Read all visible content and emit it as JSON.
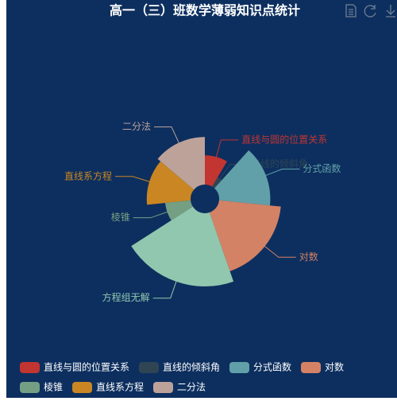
{
  "chart_data": {
    "type": "pie",
    "rose_type": "radius",
    "title": "高一（三）班数学薄弱知识点统计",
    "categories": [
      "直线与圆的位置关系",
      "直线的倾斜角",
      "分式函数",
      "对数",
      "方程组无解",
      "棱锥",
      "直线系方程",
      "二分法"
    ],
    "values": [
      8,
      3,
      14,
      17,
      20,
      7,
      12,
      13
    ],
    "colors": [
      "#c23531",
      "#2f4554",
      "#61a0a8",
      "#d48265",
      "#91c7ae",
      "#749f83",
      "#ca8622",
      "#bda29a"
    ],
    "in_legend": [
      true,
      true,
      true,
      true,
      false,
      true,
      true,
      true
    ],
    "legend_position": "bottom"
  }
}
